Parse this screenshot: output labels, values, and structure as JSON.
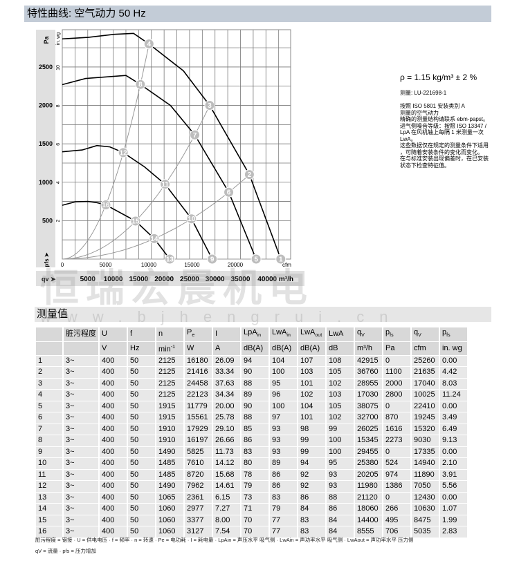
{
  "header": {
    "title": "特性曲线: 空气动力 50 Hz"
  },
  "section2": {
    "title": "测量值"
  },
  "watermark": {
    "text": "恒瑞宏晨机电",
    "url": "www.bjhengrui.cn"
  },
  "side": {
    "rho": "ρ = 1.15 kg/m³ ± 2 %",
    "measure": "测量: LU-221698-1",
    "notes": [
      "按照 ISO 5801 安装类别 A",
      "测量的空气动力",
      "精确的测量结构请联系 ebm-papst。",
      "进气侧噪音等级：按照 ISO 13347 /",
      "LpA 在风机轴上每隔 1 米测量一次",
      "LwA。",
      "这些数据仅在规定的测量条件下适用",
      "，可随着安装条件的变化而变化。",
      "在与标准安装出现偏差时，在已安装",
      "状态下检查特征值。"
    ]
  },
  "chart_data": {
    "type": "line",
    "xlabel": "cfm",
    "ylabel": "Pa",
    "ylabel2": "in. wg",
    "ylabel_pfs": "pfs",
    "xlabel2": "m³/h",
    "xlabel2_prefix": "qv",
    "xlim": [
      0,
      26400
    ],
    "ylim": [
      0,
      2985
    ],
    "x_ticks": [
      0,
      5000,
      10000,
      15000,
      20000
    ],
    "y_ticks": [
      500,
      1000,
      1500,
      2000,
      2500
    ],
    "y2_ticks": [
      2,
      4,
      6,
      8,
      10
    ],
    "x2_ticks": [
      5000,
      10000,
      15000,
      20000,
      25000,
      30000,
      35000,
      "40000 m³/h"
    ],
    "grid": true,
    "colors": {
      "fan_curve": "#000000",
      "system_curve": "#999999",
      "marker": "#bdbdbd",
      "axis_band": "#e0e0e0"
    },
    "fan_curves": [
      {
        "rpm": 2125,
        "points": [
          [
            0,
            2865
          ],
          [
            3000,
            2885
          ],
          [
            6000,
            2925
          ],
          [
            8240,
            2937
          ],
          [
            10025,
            2800
          ],
          [
            14000,
            2450
          ],
          [
            17040,
            2000
          ],
          [
            21635,
            1100
          ],
          [
            25260,
            0
          ]
        ]
      },
      {
        "rpm": 1910,
        "points": [
          [
            0,
            2270
          ],
          [
            2700,
            2350
          ],
          [
            7360,
            2390
          ],
          [
            9030,
            2273
          ],
          [
            12500,
            2000
          ],
          [
            15320,
            1616
          ],
          [
            19245,
            870
          ],
          [
            22410,
            0
          ]
        ]
      },
      {
        "rpm": 1490,
        "points": [
          [
            0,
            1396
          ],
          [
            2300,
            1420
          ],
          [
            4000,
            1477
          ],
          [
            5500,
            1460
          ],
          [
            7050,
            1386
          ],
          [
            9500,
            1200
          ],
          [
            11890,
            974
          ],
          [
            14940,
            524
          ],
          [
            17335,
            0
          ]
        ]
      },
      {
        "rpm": 1060,
        "points": [
          [
            0,
            700
          ],
          [
            1500,
            745
          ],
          [
            2960,
            750
          ],
          [
            4000,
            735
          ],
          [
            5035,
            706
          ],
          [
            8475,
            495
          ],
          [
            10630,
            266
          ],
          [
            12430,
            0
          ]
        ]
      }
    ],
    "system_curves": [
      [
        4,
        8,
        12,
        16
      ],
      [
        3,
        7,
        11,
        15
      ],
      [
        2,
        6,
        10,
        14
      ],
      [
        1,
        5,
        9,
        13
      ]
    ],
    "points": [
      {
        "id": 1,
        "cfm": 25260,
        "pa": 0
      },
      {
        "id": 2,
        "cfm": 21635,
        "pa": 1100
      },
      {
        "id": 3,
        "cfm": 17040,
        "pa": 2000
      },
      {
        "id": 4,
        "cfm": 10025,
        "pa": 2800
      },
      {
        "id": 5,
        "cfm": 22410,
        "pa": 0
      },
      {
        "id": 6,
        "cfm": 19245,
        "pa": 870
      },
      {
        "id": 7,
        "cfm": 15320,
        "pa": 1616
      },
      {
        "id": 8,
        "cfm": 9030,
        "pa": 2273
      },
      {
        "id": 9,
        "cfm": 17335,
        "pa": 0
      },
      {
        "id": 10,
        "cfm": 14940,
        "pa": 524
      },
      {
        "id": 11,
        "cfm": 11890,
        "pa": 974
      },
      {
        "id": 12,
        "cfm": 7050,
        "pa": 1386
      },
      {
        "id": 13,
        "cfm": 12430,
        "pa": 0
      },
      {
        "id": 14,
        "cfm": 10630,
        "pa": 266
      },
      {
        "id": 15,
        "cfm": 8475,
        "pa": 495
      },
      {
        "id": 16,
        "cfm": 5035,
        "pa": 706
      }
    ]
  },
  "table": {
    "headers": [
      "",
      "脏污程度",
      "U",
      "f",
      "n",
      "Pe",
      "I",
      "LpAin",
      "LwAin",
      "LwAout",
      "LwA",
      "qV",
      "pfs",
      "qV",
      "pfs"
    ],
    "units": [
      "",
      "",
      "V",
      "Hz",
      "min-1",
      "W",
      "A",
      "dB(A)",
      "dB(A)",
      "dB(A)",
      "dB",
      "m³/h",
      "Pa",
      "cfm",
      "in. wg"
    ],
    "rows": [
      [
        "1",
        "3~",
        "400",
        "50",
        "2125",
        "16180",
        "26.09",
        "94",
        "104",
        "107",
        "108",
        "42915",
        "0",
        "25260",
        "0.00"
      ],
      [
        "2",
        "3~",
        "400",
        "50",
        "2125",
        "21416",
        "33.34",
        "90",
        "100",
        "103",
        "105",
        "36760",
        "1100",
        "21635",
        "4.42"
      ],
      [
        "3",
        "3~",
        "400",
        "50",
        "2125",
        "24458",
        "37.63",
        "88",
        "95",
        "101",
        "102",
        "28955",
        "2000",
        "17040",
        "8.03"
      ],
      [
        "4",
        "3~",
        "400",
        "50",
        "2125",
        "22123",
        "34.34",
        "89",
        "96",
        "102",
        "103",
        "17030",
        "2800",
        "10025",
        "11.24"
      ],
      [
        "5",
        "3~",
        "400",
        "50",
        "1915",
        "11779",
        "20.00",
        "90",
        "100",
        "104",
        "105",
        "38075",
        "0",
        "22410",
        "0.00"
      ],
      [
        "6",
        "3~",
        "400",
        "50",
        "1915",
        "15561",
        "25.78",
        "88",
        "97",
        "101",
        "102",
        "32700",
        "870",
        "19245",
        "3.49"
      ],
      [
        "7",
        "3~",
        "400",
        "50",
        "1910",
        "17929",
        "29.10",
        "85",
        "93",
        "98",
        "99",
        "26025",
        "1616",
        "15320",
        "6.49"
      ],
      [
        "8",
        "3~",
        "400",
        "50",
        "1910",
        "16197",
        "26.66",
        "86",
        "93",
        "99",
        "100",
        "15345",
        "2273",
        "9030",
        "9.13"
      ],
      [
        "9",
        "3~",
        "400",
        "50",
        "1490",
        "5825",
        "11.73",
        "83",
        "93",
        "99",
        "100",
        "29455",
        "0",
        "17335",
        "0.00"
      ],
      [
        "10",
        "3~",
        "400",
        "50",
        "1485",
        "7610",
        "14.12",
        "80",
        "89",
        "94",
        "95",
        "25380",
        "524",
        "14940",
        "2.10"
      ],
      [
        "11",
        "3~",
        "400",
        "50",
        "1485",
        "8720",
        "15.68",
        "78",
        "86",
        "92",
        "93",
        "20205",
        "974",
        "11890",
        "3.91"
      ],
      [
        "12",
        "3~",
        "400",
        "50",
        "1490",
        "7962",
        "14.61",
        "79",
        "86",
        "92",
        "93",
        "11980",
        "1386",
        "7050",
        "5.56"
      ],
      [
        "13",
        "3~",
        "400",
        "50",
        "1065",
        "2361",
        "6.15",
        "73",
        "83",
        "86",
        "88",
        "21120",
        "0",
        "12430",
        "0.00"
      ],
      [
        "14",
        "3~",
        "400",
        "50",
        "1060",
        "2977",
        "7.27",
        "71",
        "79",
        "84",
        "86",
        "18060",
        "266",
        "10630",
        "1.07"
      ],
      [
        "15",
        "3~",
        "400",
        "50",
        "1060",
        "3377",
        "8.00",
        "70",
        "77",
        "83",
        "84",
        "14400",
        "495",
        "8475",
        "1.99"
      ],
      [
        "16",
        "3~",
        "400",
        "50",
        "1060",
        "3127",
        "7.54",
        "70",
        "77",
        "83",
        "84",
        "8555",
        "706",
        "5035",
        "2.83"
      ]
    ]
  },
  "footer": {
    "line1": "脏污程度 = 错接 · U = 供电电压 · f = 频率 · n = 转速 · Pe = 电功耗 · I = 耗电量 · LpAin = 声压水平 吸气侧 · LwAin = 声功率水平 吸气侧 · LwAout = 声功率水平 压力侧",
    "line2": "qV = 流量 · pfs = 压力增加"
  }
}
